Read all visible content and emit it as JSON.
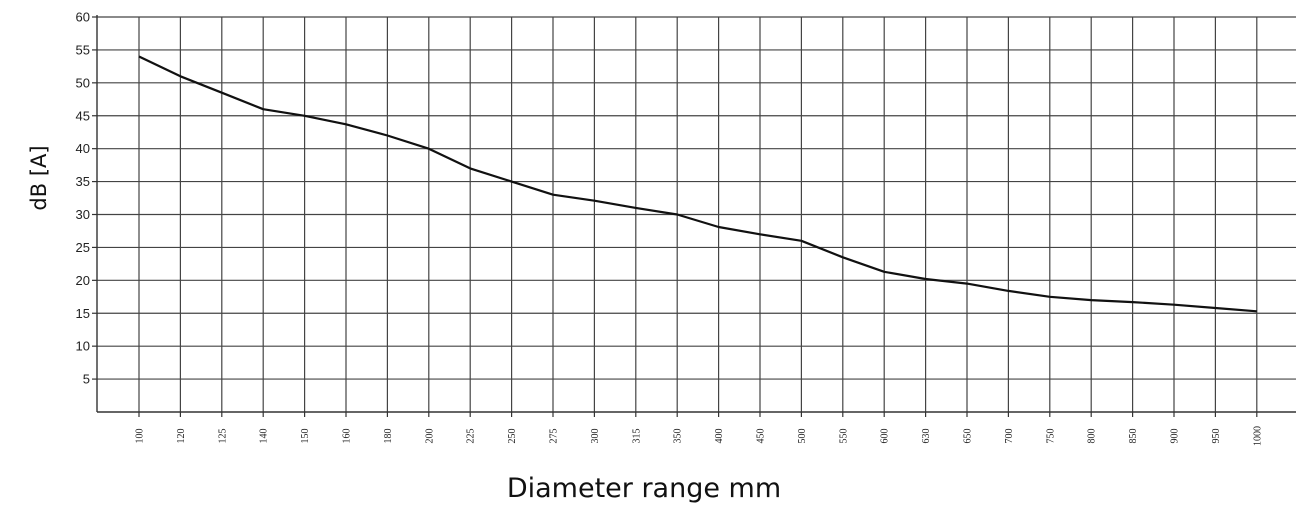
{
  "chart_data": {
    "type": "line",
    "xlabel": "Diameter range mm",
    "ylabel": "dB [A]",
    "categories": [
      "100",
      "120",
      "125",
      "140",
      "150",
      "160",
      "180",
      "200",
      "225",
      "250",
      "275",
      "300",
      "315",
      "350",
      "400",
      "450",
      "500",
      "550",
      "600",
      "630",
      "650",
      "700",
      "750",
      "800",
      "850",
      "900",
      "950",
      "1000"
    ],
    "series": [
      {
        "values": [
          54,
          51,
          48.5,
          46,
          45,
          43.7,
          42,
          40,
          37,
          35,
          33,
          32.1,
          31,
          30,
          28.1,
          27,
          26,
          23.5,
          21.3,
          20.2,
          19.5,
          18.4,
          17.5,
          17,
          16.7,
          16.3,
          15.8,
          15.3
        ]
      }
    ],
    "y_ticks": [
      "60",
      "55",
      "50",
      "45",
      "40",
      "35",
      "30",
      "25",
      "20",
      "15",
      "10",
      "5"
    ],
    "ylim": [
      0,
      60
    ],
    "grid": true,
    "legend": "none",
    "colors": {
      "line": "#111111",
      "grid": "#444444",
      "axis": "#333333"
    }
  }
}
